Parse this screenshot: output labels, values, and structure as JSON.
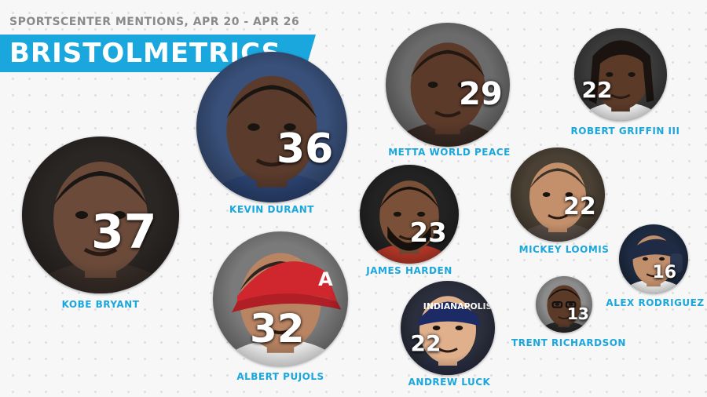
{
  "header": {
    "subtitle": "SPORTSCENTER MENTIONS, APR 20 - APR 26",
    "title": "BRISTOLMETRICS"
  },
  "colors": {
    "accent": "#1aa7dd",
    "name_text": "#1aa7dd",
    "subtitle_text": "#8a8a8a",
    "background": "#f7f7f7"
  },
  "chart_data": {
    "type": "bubble",
    "title": "BRISTOLMETRICS",
    "subtitle": "SPORTSCENTER MENTIONS, APR 20 - APR 26",
    "series": [
      {
        "name": "KOBE BRYANT",
        "value": 37,
        "label": "37",
        "photo": "kobe-bryant-photo"
      },
      {
        "name": "KEVIN DURANT",
        "value": 36,
        "label": "36",
        "photo": "kevin-durant-photo"
      },
      {
        "name": "ALBERT PUJOLS",
        "value": 32,
        "label": "32",
        "photo": "albert-pujols-photo"
      },
      {
        "name": "METTA WORLD PEACE",
        "value": 29,
        "label": "29",
        "photo": "metta-world-peace-photo"
      },
      {
        "name": "JAMES HARDEN",
        "value": 23,
        "label": "23",
        "photo": "james-harden-photo"
      },
      {
        "name": "ROBERT GRIFFIN III",
        "value": 22,
        "label": "22",
        "photo": "robert-griffin-photo"
      },
      {
        "name": "MICKEY LOOMIS",
        "value": 22,
        "label": "22",
        "photo": "mickey-loomis-photo"
      },
      {
        "name": "ANDREW LUCK",
        "value": 22,
        "label": "22",
        "photo": "andrew-luck-photo"
      },
      {
        "name": "ALEX RODRIGUEZ",
        "value": 16,
        "label": "16",
        "photo": "alex-rodriguez-photo"
      },
      {
        "name": "TRENT RICHARDSON",
        "value": 13,
        "label": "13",
        "photo": "trent-richardson-photo"
      }
    ]
  }
}
